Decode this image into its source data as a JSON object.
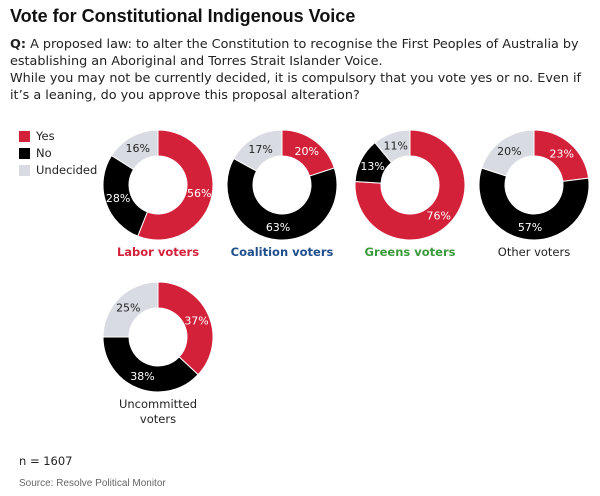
{
  "title": "Vote for Constitutional Indigenous Voice",
  "question": {
    "prefix": "Q:",
    "text": "A proposed law: to alter the Constitution to recognise the First Peoples of Australia by establishing an Aboriginal and Torres Strait Islander Voice.",
    "text2": "While you may not be currently decided, it is compulsory that you vote yes or no. Even if it’s a leaning, do you approve this proposal alteration?"
  },
  "colors": {
    "yes": "#d3213a",
    "no": "#000000",
    "undecided": "#d8dbe2"
  },
  "legend": [
    {
      "label": "Yes",
      "key": "yes"
    },
    {
      "label": "No",
      "key": "no"
    },
    {
      "label": "Undecided",
      "key": "undecided"
    }
  ],
  "chart_data": {
    "type": "pie",
    "variant": "donut",
    "categories": [
      "Yes",
      "No",
      "Undecided"
    ],
    "series": [
      {
        "name": "Labor voters",
        "label_color": "#d3213a",
        "values": [
          56,
          28,
          16
        ]
      },
      {
        "name": "Coalition voters",
        "label_color": "#1f4e8c",
        "values": [
          20,
          63,
          17
        ]
      },
      {
        "name": "Greens voters",
        "label_color": "#3b9a3b",
        "values": [
          76,
          13,
          11
        ]
      },
      {
        "name": "Other voters",
        "label_color": "#222222",
        "values": [
          23,
          57,
          20
        ]
      },
      {
        "name": "Uncommitted voters",
        "label_color": "#222222",
        "values": [
          37,
          38,
          25
        ]
      }
    ]
  },
  "n_label": "n = 1607",
  "source": "Source: Resolve Political Monitor"
}
